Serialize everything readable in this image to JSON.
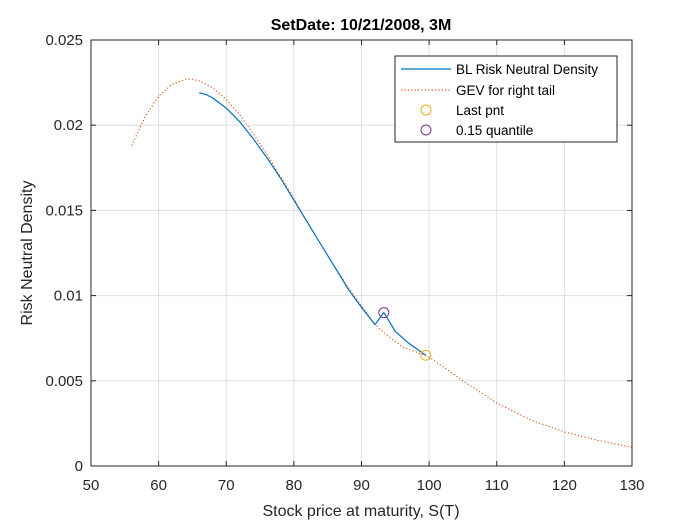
{
  "chart_data": {
    "type": "line",
    "title": "SetDate: 10/21/2008, 3M",
    "xlabel": "Stock price at maturity, S(T)",
    "ylabel": "Risk Neutral Density",
    "xlim": [
      50,
      130
    ],
    "ylim": [
      0,
      0.025
    ],
    "xticks": [
      50,
      60,
      70,
      80,
      90,
      100,
      110,
      120,
      130
    ],
    "xtick_labels": [
      "50",
      "60",
      "70",
      "80",
      "90",
      "100",
      "110",
      "120",
      "130"
    ],
    "yticks": [
      0,
      0.005,
      0.01,
      0.015,
      0.02,
      0.025
    ],
    "ytick_labels": [
      "0",
      "0.005",
      "0.01",
      "0.015",
      "0.02",
      "0.025"
    ],
    "grid": true,
    "legend_position": "top-right",
    "series": [
      {
        "name": "BL Risk Neutral Density",
        "style": "solid",
        "color": "#0072BD",
        "x": [
          66,
          67,
          68,
          69,
          70,
          72,
          74,
          76,
          78,
          80,
          82,
          84,
          86,
          88,
          90,
          92,
          93.3,
          95,
          97,
          99.5
        ],
        "y": [
          0.0219,
          0.0218,
          0.0216,
          0.0213,
          0.021,
          0.0202,
          0.0192,
          0.0181,
          0.0169,
          0.0156,
          0.0143,
          0.013,
          0.0117,
          0.0104,
          0.0093,
          0.0083,
          0.009,
          0.0079,
          0.0072,
          0.0065
        ]
      },
      {
        "name": "GEV for right tail",
        "style": "dotted",
        "color": "#D95319",
        "x": [
          56,
          58,
          60,
          62,
          64,
          65,
          66,
          68,
          70,
          72,
          74,
          76,
          78,
          80,
          82,
          84,
          86,
          88,
          90,
          92,
          94,
          96,
          98,
          100,
          105,
          110,
          115,
          120,
          125,
          130
        ],
        "y": [
          0.0188,
          0.0205,
          0.0217,
          0.0224,
          0.0227,
          0.0227,
          0.0226,
          0.0222,
          0.0215,
          0.0206,
          0.0195,
          0.0183,
          0.017,
          0.0157,
          0.0143,
          0.013,
          0.0117,
          0.0105,
          0.0094,
          0.0083,
          0.0076,
          0.007,
          0.0067,
          0.0064,
          0.005,
          0.0037,
          0.0027,
          0.002,
          0.0015,
          0.0011
        ]
      },
      {
        "name": "Last pnt",
        "style": "marker",
        "color": "#EDB120",
        "x": [
          99.5
        ],
        "y": [
          0.0065
        ]
      },
      {
        "name": "0.15 quantile",
        "style": "marker",
        "color": "#7E2F8E",
        "x": [
          93.3
        ],
        "y": [
          0.009
        ]
      }
    ]
  }
}
